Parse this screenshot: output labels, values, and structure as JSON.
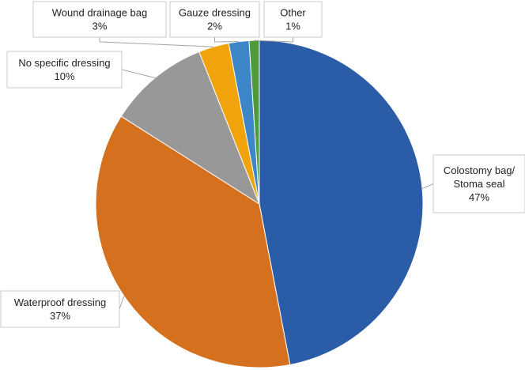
{
  "chart_data": {
    "type": "pie",
    "title": "",
    "slices": [
      {
        "label_lines": [
          "Colostomy bag/",
          "Stoma seal"
        ],
        "pct_label": "47%",
        "value": 47,
        "color": "#2b5ca8"
      },
      {
        "label_lines": [
          "Waterproof dressing"
        ],
        "pct_label": "37%",
        "value": 37,
        "color": "#d5701f"
      },
      {
        "label_lines": [
          "No specific dressing"
        ],
        "pct_label": "10%",
        "value": 10,
        "color": "#989898"
      },
      {
        "label_lines": [
          "Wound drainage bag"
        ],
        "pct_label": "3%",
        "value": 3,
        "color": "#f0a30b"
      },
      {
        "label_lines": [
          "Gauze dressing"
        ],
        "pct_label": "2%",
        "value": 2,
        "color": "#3d86c8"
      },
      {
        "label_lines": [
          "Other"
        ],
        "pct_label": "1%",
        "value": 1,
        "color": "#4f9a3b"
      }
    ],
    "legend": "none",
    "data_labels": "outside with leader lines"
  }
}
